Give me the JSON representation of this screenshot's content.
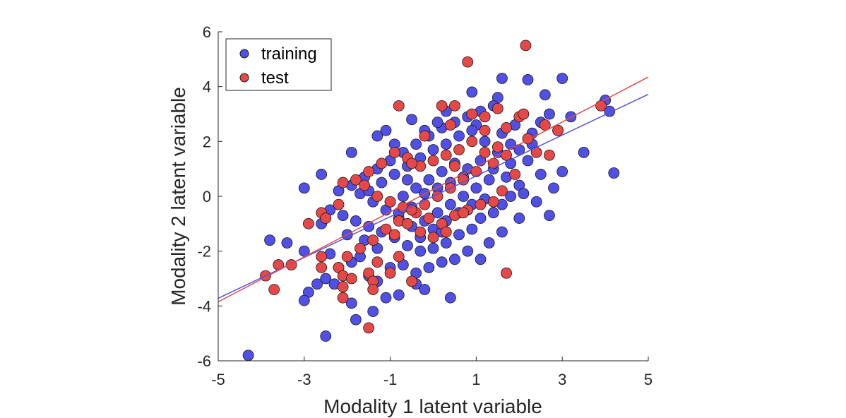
{
  "chart_data": {
    "type": "scatter",
    "title": "",
    "xlabel": "Modality 1 latent variable",
    "ylabel": "Modality 2 latent variable",
    "xlim": [
      -5,
      5
    ],
    "ylim": [
      -6,
      6
    ],
    "xticks": [
      -5,
      -3,
      -1,
      1,
      3,
      5
    ],
    "yticks": [
      -6,
      -4,
      -2,
      0,
      2,
      4,
      6
    ],
    "grid": false,
    "legend": {
      "position": "top-left"
    },
    "series": [
      {
        "name": "training",
        "color": "#5050e6",
        "points": [
          [
            -4.3,
            -5.8
          ],
          [
            -3.8,
            -1.6
          ],
          [
            -3.4,
            -1.7
          ],
          [
            -3.0,
            0.3
          ],
          [
            -2.6,
            0.8
          ],
          [
            -2.5,
            -5.1
          ],
          [
            -3.0,
            -2.0
          ],
          [
            -2.9,
            -3.5
          ],
          [
            -3.0,
            -3.8
          ],
          [
            -2.7,
            -3.2
          ],
          [
            -2.5,
            -3.0
          ],
          [
            -2.3,
            -3.2
          ],
          [
            -2.4,
            -2.1
          ],
          [
            -2.2,
            -2.6
          ],
          [
            -1.8,
            -4.5
          ],
          [
            -1.9,
            -3.9
          ],
          [
            -1.4,
            -4.2
          ],
          [
            -1.1,
            -3.7
          ],
          [
            -0.8,
            -3.6
          ],
          [
            -0.4,
            -3.2
          ],
          [
            -0.2,
            -3.4
          ],
          [
            0.4,
            -3.7
          ],
          [
            -1.9,
            -2.4
          ],
          [
            -1.7,
            -2.2
          ],
          [
            -1.5,
            -2.9
          ],
          [
            -1.3,
            -3.1
          ],
          [
            -1.0,
            -2.6
          ],
          [
            -0.7,
            -2.5
          ],
          [
            -0.4,
            -2.8
          ],
          [
            -0.1,
            -2.6
          ],
          [
            0.2,
            -2.4
          ],
          [
            0.5,
            -2.3
          ],
          [
            0.8,
            -2.0
          ],
          [
            1.1,
            -2.3
          ],
          [
            1.3,
            -1.7
          ],
          [
            1.6,
            -1.3
          ],
          [
            2.0,
            -0.8
          ],
          [
            2.7,
            -0.7
          ],
          [
            2.4,
            -0.2
          ],
          [
            2.8,
            0.3
          ],
          [
            3.0,
            0.9
          ],
          [
            3.5,
            1.6
          ],
          [
            4.2,
            0.85
          ],
          [
            4.1,
            3.1
          ],
          [
            4.0,
            3.5
          ],
          [
            3.0,
            4.3
          ],
          [
            2.2,
            4.25
          ],
          [
            1.6,
            4.3
          ],
          [
            0.9,
            3.8
          ],
          [
            1.5,
            3.6
          ],
          [
            2.6,
            3.7
          ],
          [
            2.7,
            3.0
          ],
          [
            3.2,
            2.9
          ],
          [
            2.9,
            2.4
          ],
          [
            2.5,
            2.7
          ],
          [
            2.3,
            1.9
          ],
          [
            2.2,
            1.3
          ],
          [
            2.5,
            0.8
          ],
          [
            2.0,
            0.4
          ],
          [
            1.8,
            0.0
          ],
          [
            1.6,
            -0.3
          ],
          [
            1.4,
            -0.6
          ],
          [
            1.1,
            -0.8
          ],
          [
            0.9,
            -1.2
          ],
          [
            0.6,
            -1.4
          ],
          [
            0.3,
            -1.7
          ],
          [
            0.0,
            -1.9
          ],
          [
            -0.3,
            -2.0
          ],
          [
            -0.6,
            -1.8
          ],
          [
            -0.9,
            -1.5
          ],
          [
            -1.2,
            -1.3
          ],
          [
            -1.5,
            -1.1
          ],
          [
            -1.8,
            -0.9
          ],
          [
            -2.1,
            -0.7
          ],
          [
            -2.4,
            -0.5
          ],
          [
            -2.2,
            0.2
          ],
          [
            -1.9,
            0.4
          ],
          [
            -1.6,
            0.7
          ],
          [
            -1.3,
            1.0
          ],
          [
            -1.0,
            1.3
          ],
          [
            -0.7,
            1.6
          ],
          [
            -0.4,
            1.9
          ],
          [
            -0.1,
            2.2
          ],
          [
            0.2,
            2.5
          ],
          [
            0.5,
            2.7
          ],
          [
            0.8,
            2.9
          ],
          [
            1.1,
            3.1
          ],
          [
            1.4,
            3.3
          ],
          [
            -1.1,
            2.4
          ],
          [
            -1.3,
            2.2
          ],
          [
            -1.9,
            1.6
          ],
          [
            -0.5,
            2.8
          ],
          [
            0.1,
            2.7
          ],
          [
            0.3,
            3.1
          ],
          [
            1.0,
            2.6
          ],
          [
            1.2,
            2.0
          ],
          [
            1.5,
            1.6
          ],
          [
            1.8,
            1.2
          ],
          [
            1.3,
            0.6
          ],
          [
            1.0,
            0.3
          ],
          [
            0.7,
            0.0
          ],
          [
            0.4,
            -0.3
          ],
          [
            0.1,
            -0.6
          ],
          [
            -0.2,
            -0.9
          ],
          [
            -0.5,
            -1.1
          ],
          [
            -0.8,
            -0.8
          ],
          [
            -1.1,
            -0.5
          ],
          [
            -1.4,
            -0.2
          ],
          [
            -1.7,
            0.1
          ],
          [
            -1.2,
            0.5
          ],
          [
            -0.9,
            0.8
          ],
          [
            -0.6,
            1.1
          ],
          [
            -0.3,
            1.4
          ],
          [
            0.0,
            1.7
          ],
          [
            0.3,
            1.9
          ],
          [
            0.6,
            2.2
          ],
          [
            0.9,
            2.4
          ],
          [
            0.5,
            1.2
          ],
          [
            0.2,
            0.9
          ],
          [
            -0.1,
            0.6
          ],
          [
            -0.4,
            0.3
          ],
          [
            -0.7,
            0.0
          ],
          [
            -1.0,
            -0.2
          ],
          [
            0.8,
            1.0
          ],
          [
            1.1,
            1.3
          ],
          [
            1.4,
            1.0
          ],
          [
            1.7,
            0.7
          ],
          [
            2.0,
            1.7
          ],
          [
            2.3,
            2.3
          ],
          [
            1.9,
            2.6
          ],
          [
            1.6,
            2.3
          ],
          [
            -0.2,
            0.1
          ],
          [
            0.1,
            0.3
          ],
          [
            0.4,
            0.5
          ],
          [
            0.7,
            0.7
          ],
          [
            -0.5,
            -0.4
          ],
          [
            -0.8,
            -0.6
          ],
          [
            0.0,
            -1.2
          ],
          [
            0.3,
            -0.9
          ],
          [
            0.6,
            -0.6
          ],
          [
            0.9,
            -0.3
          ],
          [
            1.2,
            -0.1
          ],
          [
            -1.6,
            -1.6
          ],
          [
            -1.3,
            -1.9
          ],
          [
            -2.0,
            -1.4
          ],
          [
            -2.6,
            -1.0
          ],
          [
            -0.3,
            -1.5
          ],
          [
            0.2,
            -1.3
          ],
          [
            -0.6,
            0.6
          ],
          [
            -1.5,
            0.2
          ],
          [
            1.8,
            1.9
          ],
          [
            2.1,
            0.1
          ],
          [
            -0.9,
            1.9
          ],
          [
            -0.2,
            2.4
          ]
        ]
      },
      {
        "name": "test",
        "color": "#e64848",
        "points": [
          [
            2.15,
            5.5
          ],
          [
            0.8,
            4.9
          ],
          [
            1.5,
            3.2
          ],
          [
            -0.8,
            3.3
          ],
          [
            0.2,
            3.3
          ],
          [
            0.5,
            3.3
          ],
          [
            3.9,
            3.3
          ],
          [
            2.9,
            2.4
          ],
          [
            2.6,
            2.6
          ],
          [
            2.2,
            2.1
          ],
          [
            2.0,
            2.9
          ],
          [
            1.7,
            2.5
          ],
          [
            1.2,
            2.4
          ],
          [
            0.9,
            2.0
          ],
          [
            0.6,
            1.7
          ],
          [
            0.3,
            1.5
          ],
          [
            0.0,
            1.3
          ],
          [
            -0.3,
            1.1
          ],
          [
            -0.6,
            1.4
          ],
          [
            -0.9,
            1.6
          ],
          [
            -1.2,
            1.2
          ],
          [
            -1.5,
            0.9
          ],
          [
            -1.8,
            0.6
          ],
          [
            -2.1,
            0.5
          ],
          [
            -1.6,
            0.4
          ],
          [
            -1.3,
            0.0
          ],
          [
            -1.0,
            -0.2
          ],
          [
            -0.7,
            -0.4
          ],
          [
            -0.4,
            -0.6
          ],
          [
            -0.1,
            -0.8
          ],
          [
            0.2,
            -1.0
          ],
          [
            0.5,
            -0.7
          ],
          [
            0.8,
            -0.5
          ],
          [
            1.1,
            -0.3
          ],
          [
            1.4,
            -0.2
          ],
          [
            1.6,
            0.2
          ],
          [
            1.9,
            0.8
          ],
          [
            2.4,
            1.6
          ],
          [
            2.7,
            1.5
          ],
          [
            1.4,
            1.2
          ],
          [
            1.0,
            0.9
          ],
          [
            0.7,
            0.6
          ],
          [
            0.4,
            0.3
          ],
          [
            0.1,
            0.0
          ],
          [
            -0.2,
            -0.3
          ],
          [
            -0.5,
            -0.5
          ],
          [
            -0.8,
            -0.9
          ],
          [
            -1.1,
            -1.2
          ],
          [
            -1.4,
            -1.6
          ],
          [
            -1.7,
            -1.9
          ],
          [
            -2.0,
            -2.2
          ],
          [
            -2.2,
            -2.6
          ],
          [
            -2.1,
            -2.9
          ],
          [
            -2.1,
            -3.3
          ],
          [
            -2.1,
            -3.7
          ],
          [
            -1.9,
            -3.0
          ],
          [
            -1.5,
            -2.8
          ],
          [
            -1.4,
            -3.1
          ],
          [
            -1.0,
            -2.8
          ],
          [
            -0.5,
            -3.1
          ],
          [
            -0.8,
            -2.2
          ],
          [
            -1.3,
            -2.4
          ],
          [
            -2.6,
            -2.2
          ],
          [
            -2.6,
            -2.6
          ],
          [
            -3.3,
            -2.5
          ],
          [
            -3.6,
            -2.5
          ],
          [
            -3.9,
            -2.9
          ],
          [
            -3.7,
            -3.4
          ],
          [
            -2.9,
            -1.0
          ],
          [
            -2.6,
            -0.6
          ],
          [
            -2.2,
            -0.3
          ],
          [
            -2.5,
            -0.8
          ],
          [
            -1.5,
            -4.8
          ],
          [
            -1.4,
            -3.4
          ],
          [
            1.7,
            -2.8
          ],
          [
            0.7,
            -0.6
          ],
          [
            0.3,
            -1.3
          ],
          [
            0.0,
            -1.5
          ],
          [
            -0.3,
            -1.3
          ],
          [
            -0.6,
            -1.0
          ],
          [
            -0.9,
            -1.4
          ],
          [
            1.2,
            2.9
          ],
          [
            1.5,
            1.8
          ],
          [
            0.9,
            3.0
          ],
          [
            -0.2,
            2.2
          ],
          [
            0.4,
            2.6
          ],
          [
            2.1,
            3.0
          ],
          [
            1.7,
            1.5
          ],
          [
            1.2,
            1.6
          ],
          [
            0.5,
            1.1
          ],
          [
            -0.5,
            1.2
          ]
        ]
      }
    ],
    "fit_lines": [
      {
        "series": "training",
        "color": "#5050e6",
        "x": [
          -5,
          5
        ],
        "y": [
          -3.72,
          3.72
        ]
      },
      {
        "series": "test",
        "color": "#e64848",
        "x": [
          -5,
          5
        ],
        "y": [
          -3.85,
          4.35
        ]
      }
    ]
  }
}
